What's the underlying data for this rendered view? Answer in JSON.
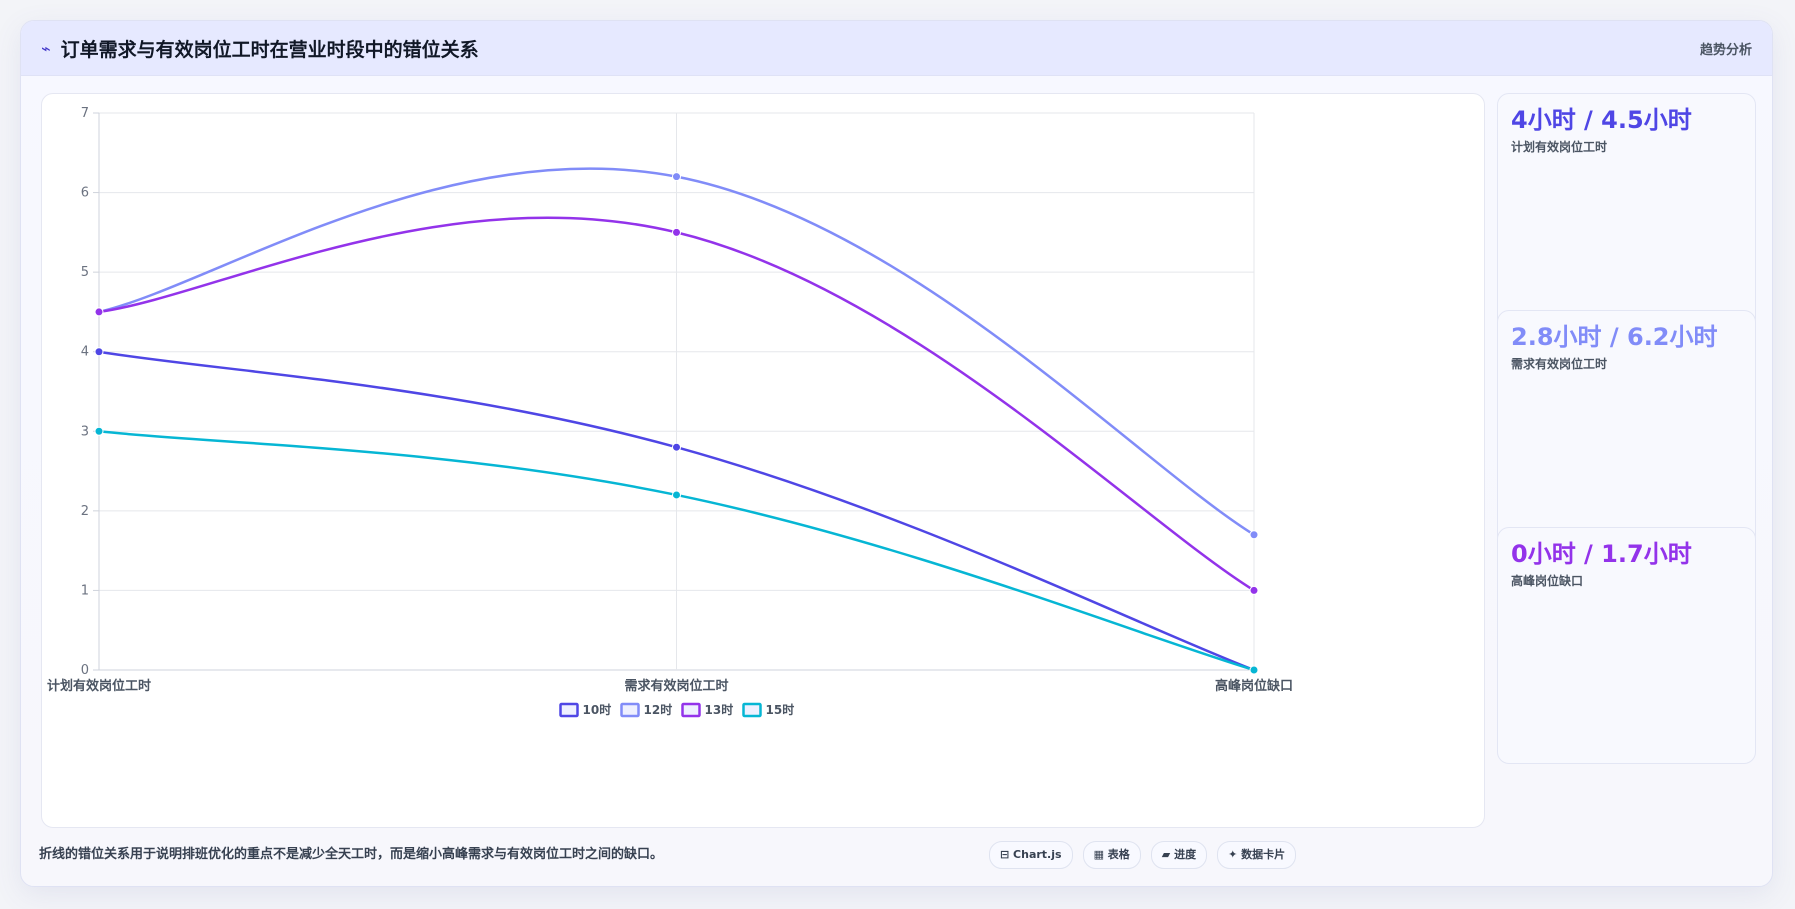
{
  "header": {
    "icon": "trend-line-icon",
    "icon_glyph": "⌁",
    "title": "订单需求与有效岗位工时在营业时段中的错位关系",
    "action_label": "趋势分析"
  },
  "chart_data": {
    "type": "line",
    "categories": [
      "计划有效岗位工时",
      "需求有效岗位工时",
      "高峰岗位缺口"
    ],
    "series": [
      {
        "name": "10时",
        "values": [
          4,
          2.8,
          0
        ],
        "color": "#4f46e5"
      },
      {
        "name": "12时",
        "values": [
          4.5,
          6.2,
          1.7
        ],
        "color": "#818cf8"
      },
      {
        "name": "13时",
        "values": [
          4.5,
          5.5,
          1
        ],
        "color": "#9333ea"
      },
      {
        "name": "15时",
        "values": [
          3,
          2.2,
          0
        ],
        "color": "#06b6d4"
      }
    ],
    "yticks": [
      "0",
      "1",
      "2",
      "3",
      "4",
      "5",
      "6",
      "7"
    ],
    "ylim": [
      0,
      7
    ],
    "grid": true,
    "curve": "smooth",
    "legend_position": "bottom"
  },
  "stats": [
    {
      "value": "4小时 / 4.5小时",
      "label": "计划有效岗位工时",
      "color": "#4f46e5"
    },
    {
      "value": "2.8小时 / 6.2小时",
      "label": "需求有效岗位工时",
      "color": "#818cf8"
    },
    {
      "value": "0小时 / 1.7小时",
      "label": "高峰岗位缺口",
      "color": "#9333ea"
    }
  ],
  "footer": {
    "note": "折线的错位关系用于说明排班优化的重点不是减少全天工时，而是缩小高峰需求与有效岗位工时之间的缺口。",
    "badges": [
      {
        "label": "⊟ Chart.js",
        "icon": "chart-icon"
      },
      {
        "label": "▦ 表格",
        "icon": "table-icon"
      },
      {
        "label": "▰ 进度",
        "icon": "progress-icon"
      },
      {
        "label": "✦ 数据卡片",
        "icon": "card-icon"
      }
    ]
  }
}
